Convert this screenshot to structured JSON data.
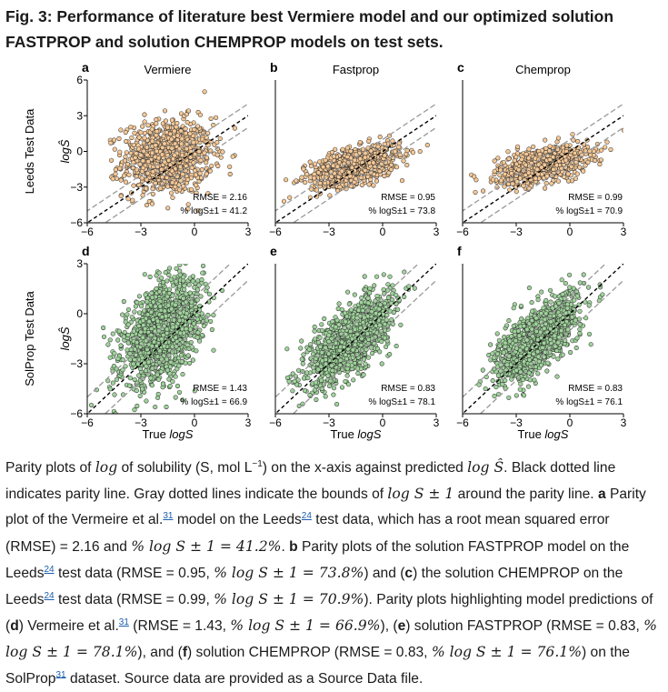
{
  "figure": {
    "title": "Fig. 3: Performance of literature best Vermiere model and our optimized solution FASTPROP and solution CHEMPROP models on test sets."
  },
  "chart_data": [
    {
      "type": "scatter",
      "panel": "a",
      "model_label": "Vermiere",
      "dataset_label": "Leeds Test Data",
      "xlabel": "",
      "ylabel": "logŜ",
      "xlim": [
        -6,
        3
      ],
      "ylim": [
        -6,
        6
      ],
      "xticks": [
        -6,
        -3,
        0,
        3
      ],
      "yticks": [
        -6,
        -3,
        0,
        3,
        6
      ],
      "point_color": "#f5c896",
      "rmse_text": "RMSE = 2.16",
      "acc_text": "% logS±1 = 41.2",
      "rmse": 2.16,
      "pct_within_1": 41.2,
      "cluster": {
        "x_mean": -1.5,
        "x_sd": 1.25,
        "y_mean": -0.5,
        "y_sd": 1.55,
        "slope": 0.1,
        "n": 900
      }
    },
    {
      "type": "scatter",
      "panel": "b",
      "model_label": "Fastprop",
      "dataset_label": "",
      "xlabel": "",
      "ylabel": "",
      "xlim": [
        -6,
        3
      ],
      "ylim": [
        -6,
        6
      ],
      "xticks": [
        -6,
        -3,
        0,
        3
      ],
      "yticks": [],
      "point_color": "#f5c896",
      "rmse_text": "RMSE = 0.95",
      "acc_text": "% logS±1 = 73.8",
      "rmse": 0.95,
      "pct_within_1": 73.8,
      "cluster": {
        "x_mean": -1.5,
        "x_sd": 1.25,
        "y_mean": -1.2,
        "y_sd": 0.75,
        "slope": 0.35,
        "n": 800
      }
    },
    {
      "type": "scatter",
      "panel": "c",
      "model_label": "Chemprop",
      "dataset_label": "",
      "xlabel": "",
      "ylabel": "",
      "xlim": [
        -6,
        3
      ],
      "ylim": [
        -6,
        6
      ],
      "xticks": [
        -6,
        -3,
        0,
        3
      ],
      "yticks": [],
      "point_color": "#f5c896",
      "rmse_text": "RMSE = 0.99",
      "acc_text": "% logS±1 = 70.9",
      "rmse": 0.99,
      "pct_within_1": 70.9,
      "cluster": {
        "x_mean": -1.5,
        "x_sd": 1.25,
        "y_mean": -1.1,
        "y_sd": 0.7,
        "slope": 0.3,
        "n": 800
      }
    },
    {
      "type": "scatter",
      "panel": "d",
      "model_label": "",
      "dataset_label": "SolProp Test Data",
      "xlabel": "True logS",
      "ylabel": "logŜ",
      "xlim": [
        -6,
        3
      ],
      "ylim": [
        -6,
        3
      ],
      "xticks": [
        -6,
        -3,
        0,
        3
      ],
      "yticks": [
        -6,
        -3,
        0,
        3
      ],
      "point_color": "#9fd39b",
      "rmse_text": "RMSE = 1.43",
      "acc_text": "% logS±1 = 66.9",
      "rmse": 1.43,
      "pct_within_1": 66.9,
      "cluster": {
        "x_mean": -1.8,
        "x_sd": 1.1,
        "y_mean": -1.1,
        "y_sd": 1.35,
        "slope": 0.6,
        "n": 1400
      }
    },
    {
      "type": "scatter",
      "panel": "e",
      "model_label": "",
      "dataset_label": "",
      "xlabel": "True logS",
      "ylabel": "",
      "xlim": [
        -6,
        3
      ],
      "ylim": [
        -6,
        3
      ],
      "xticks": [
        -6,
        -3,
        0,
        3
      ],
      "yticks": [],
      "point_color": "#9fd39b",
      "rmse_text": "RMSE = 0.83",
      "acc_text": "% logS±1 = 78.1",
      "rmse": 0.83,
      "pct_within_1": 78.1,
      "cluster": {
        "x_mean": -1.8,
        "x_sd": 1.1,
        "y_mean": -1.5,
        "y_sd": 0.95,
        "slope": 0.75,
        "n": 1400
      }
    },
    {
      "type": "scatter",
      "panel": "f",
      "model_label": "",
      "dataset_label": "",
      "xlabel": "True logS",
      "ylabel": "",
      "xlim": [
        -6,
        3
      ],
      "ylim": [
        -6,
        3
      ],
      "xticks": [
        -6,
        -3,
        0,
        3
      ],
      "yticks": [],
      "point_color": "#9fd39b",
      "rmse_text": "RMSE = 0.83",
      "acc_text": "% logS±1 = 76.1",
      "rmse": 0.83,
      "pct_within_1": 76.1,
      "cluster": {
        "x_mean": -1.8,
        "x_sd": 1.1,
        "y_mean": -1.5,
        "y_sd": 0.9,
        "slope": 0.75,
        "n": 1400
      }
    }
  ],
  "caption": {
    "p1": "Parity plots of ",
    "p2": " of solubility (S, mol L",
    "p2_sup": "−1",
    "p3": ") on the x-axis against predicted ",
    "p4": ". Black dotted line indicates parity line. Gray dotted lines indicate the bounds of ",
    "p5": " around the parity line. ",
    "p5_bold": "a",
    "p6": " Parity plot of the Vermeire et al.",
    "ref31": "31",
    "p7": " model on the Leeds",
    "ref24": "24",
    "p8": " test data, which has a root mean squared error (RMSE) = 2.16 and ",
    "p9": ". ",
    "p9_bold": "b",
    "p10": " Parity plots of the solution FASTPROP model on the Leeds",
    "p11": " test data (RMSE = 0.95, ",
    "p12": ") and (",
    "p12_bold": "c",
    "p13": ") the solution CHEMPROP on the Leeds",
    "p14": " test data (RMSE = 0.99, ",
    "p15": "). Parity plots highlighting model predictions of (",
    "p15_bold": "d",
    "p16": ") Vermeire et al.",
    "p17": " (RMSE = 1.43, ",
    "p18": "), (",
    "p18_bold": "e",
    "p19": ") solution FASTPROP (RMSE = 0.83, ",
    "p20": "), and (",
    "p20_bold": "f",
    "p21": ") solution CHEMPROP (RMSE = 0.83, ",
    "p22": ") on the SolProp",
    "p23": " dataset. Source data are provided as a Source Data file.",
    "m_log": "log",
    "m_logS": "log Ŝ",
    "m_logS_pm": "log S ± 1",
    "m_pct1": "% log S ± 1 = 41.2%",
    "m_pct2": "% log S ± 1 = 73.8%",
    "m_pct3": "% log S ± 1 = 70.9%",
    "m_pct4": "% log S ± 1 = 66.9%",
    "m_pct5": "% log S ± 1 = 78.1%",
    "m_pct6": "% log S ± 1 = 76.1%"
  }
}
